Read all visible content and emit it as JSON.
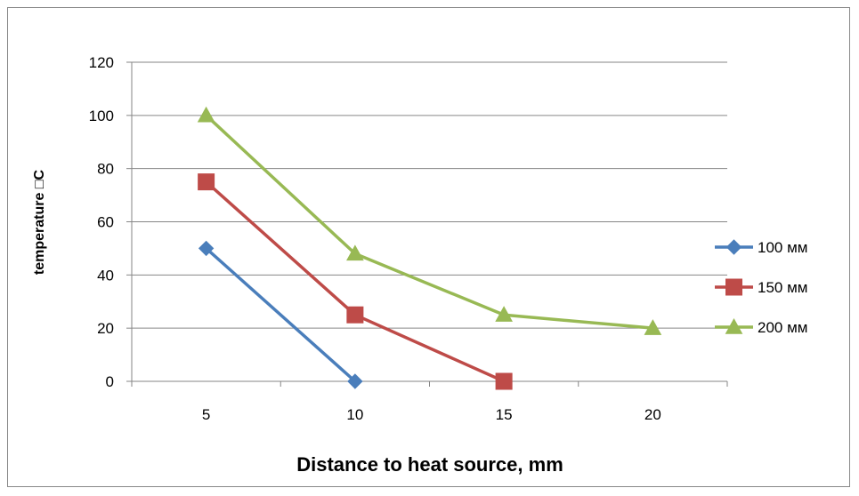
{
  "chart_data": {
    "type": "line",
    "title": "",
    "xlabel": "Distance to heat source, mm",
    "ylabel": "temperature □C",
    "categories": [
      "5",
      "10",
      "15",
      "20"
    ],
    "ylim": [
      0,
      120
    ],
    "yticks": [
      0,
      20,
      40,
      60,
      80,
      100,
      120
    ],
    "grid": true,
    "legend_position": "right",
    "series": [
      {
        "name": "100 мм",
        "color": "#4a7ebb",
        "marker": "diamond",
        "values": [
          50,
          0,
          null,
          null
        ]
      },
      {
        "name": "150 мм",
        "color": "#be4b48",
        "marker": "square",
        "values": [
          75,
          25,
          0,
          null
        ]
      },
      {
        "name": "200 мм",
        "color": "#98b954",
        "marker": "triangle",
        "values": [
          100,
          48,
          25,
          20
        ]
      }
    ]
  }
}
